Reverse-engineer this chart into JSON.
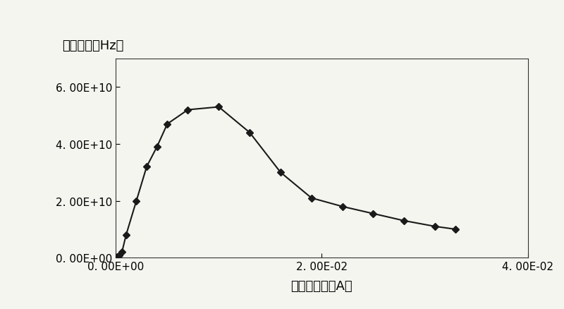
{
  "x": [
    0.0001,
    0.0003,
    0.0006,
    0.001,
    0.002,
    0.003,
    0.004,
    0.005,
    0.007,
    0.01,
    0.013,
    0.016,
    0.019,
    0.022,
    0.025,
    0.028,
    0.031,
    0.033
  ],
  "y": [
    200000000.0,
    800000000.0,
    2000000000.0,
    8000000000.0,
    20000000000.0,
    32000000000.0,
    39000000000.0,
    47000000000.0,
    52000000000.0,
    53000000000.0,
    44000000000.0,
    30000000000.0,
    21000000000.0,
    18000000000.0,
    15500000000.0,
    13000000000.0,
    11000000000.0,
    10000000000.0
  ],
  "title_y": "截止频率（Hz）",
  "xlabel": "集电极电流（A）",
  "xlim": [
    0.0,
    0.036
  ],
  "ylim": [
    0.0,
    70000000000.0
  ],
  "xticks": [
    0.0,
    0.02,
    0.04
  ],
  "yticks": [
    0.0,
    20000000000.0,
    40000000000.0,
    60000000000.0
  ],
  "line_color": "#1a1a1a",
  "marker": "D",
  "marker_size": 5,
  "background_color": "#f5f5f0",
  "figsize": [
    8.0,
    4.39
  ],
  "dpi": 100
}
